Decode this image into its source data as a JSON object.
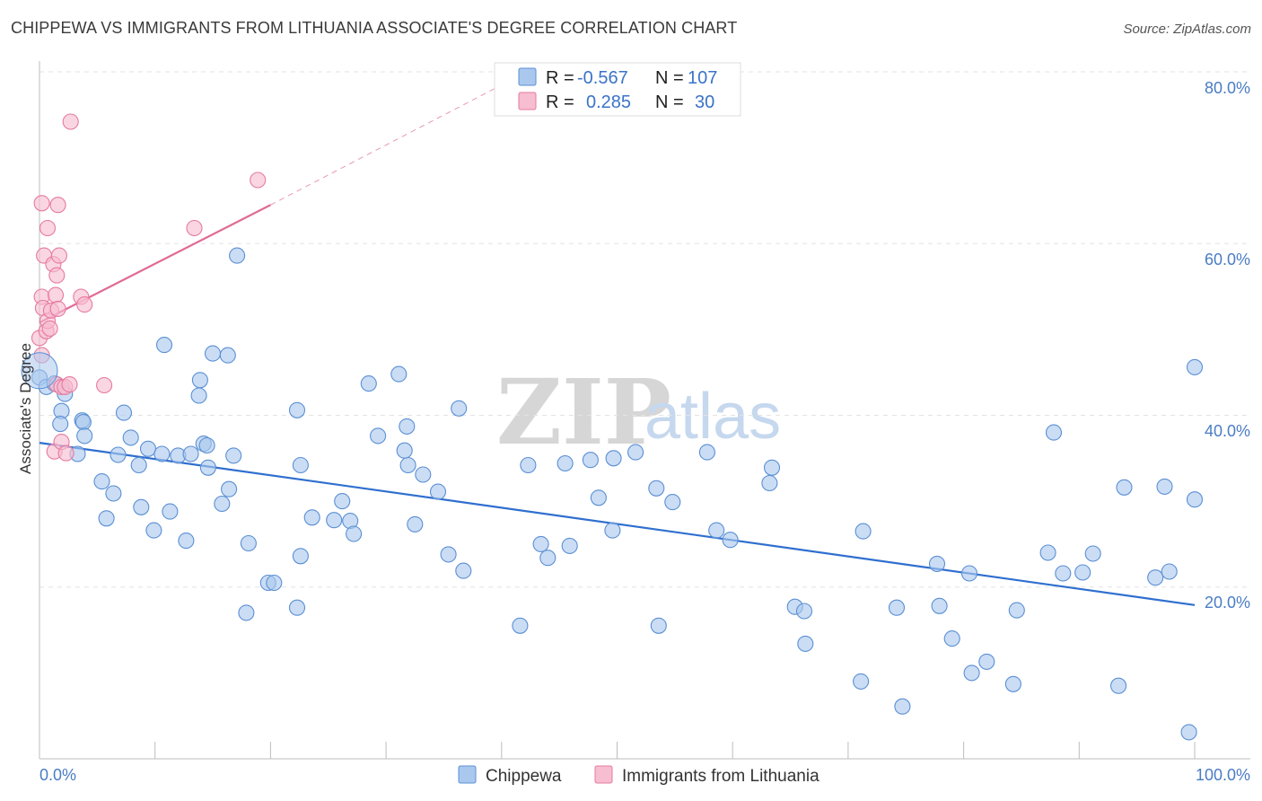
{
  "header": {
    "title": "CHIPPEWA VS IMMIGRANTS FROM LITHUANIA ASSOCIATE'S DEGREE CORRELATION CHART",
    "source": "Source: ZipAtlas.com"
  },
  "watermark": {
    "zip": "ZIP",
    "atlas": "atlas"
  },
  "colors": {
    "blue_fill": "#aac8ee",
    "blue_stroke": "#5b8fd4",
    "blue_line": "#2f6fcf",
    "pink_fill": "#f7bdd0",
    "pink_stroke": "#e67aa0",
    "pink_line": "#e06b96",
    "tick_text": "#4a7cc4",
    "grid": "#e3e3e3"
  },
  "stats": {
    "row1": {
      "r_label": "R =",
      "r_value": "-0.567",
      "n_label": "N =",
      "n_value": "107"
    },
    "row2": {
      "r_label": "R =",
      "r_value": "0.285",
      "n_label": "N =",
      "n_value": "30"
    }
  },
  "chart_data": {
    "type": "scatter",
    "title": "CHIPPEWA VS IMMIGRANTS FROM LITHUANIA ASSOCIATE'S DEGREE CORRELATION CHART",
    "xlabel": "",
    "ylabel": "Associate's Degree",
    "xlim": [
      0,
      100
    ],
    "ylim": [
      0,
      80
    ],
    "x_tick_labels": [
      "0.0%",
      "100.0%"
    ],
    "y_ticks": [
      20,
      40,
      60,
      80
    ],
    "y_tick_labels": [
      "20.0%",
      "40.0%",
      "60.0%",
      "80.0%"
    ],
    "grid": true,
    "legend_position": "bottom-center",
    "series": [
      {
        "name": "Chippewa",
        "color": "blue",
        "r": -0.567,
        "n": 107,
        "trend": {
          "x": [
            0,
            100
          ],
          "y": [
            36.8,
            17.9
          ]
        },
        "points": [
          [
            0.0,
            44.4
          ],
          [
            0.6,
            43.3
          ],
          [
            1.3,
            43.7
          ],
          [
            2.2,
            42.5
          ],
          [
            1.9,
            40.5
          ],
          [
            1.8,
            39.0
          ],
          [
            3.7,
            39.4
          ],
          [
            3.8,
            39.2
          ],
          [
            3.9,
            37.6
          ],
          [
            3.3,
            35.5
          ],
          [
            7.3,
            40.3
          ],
          [
            7.9,
            37.4
          ],
          [
            6.8,
            35.4
          ],
          [
            8.6,
            34.2
          ],
          [
            5.4,
            32.3
          ],
          [
            6.4,
            30.9
          ],
          [
            5.8,
            28.0
          ],
          [
            8.8,
            29.3
          ],
          [
            9.9,
            26.6
          ],
          [
            9.4,
            36.1
          ],
          [
            10.6,
            35.5
          ],
          [
            12.0,
            35.3
          ],
          [
            13.1,
            35.5
          ],
          [
            14.2,
            36.7
          ],
          [
            14.5,
            36.5
          ],
          [
            14.6,
            33.9
          ],
          [
            16.8,
            35.3
          ],
          [
            15.8,
            29.7
          ],
          [
            11.3,
            28.8
          ],
          [
            12.7,
            25.4
          ],
          [
            16.4,
            31.4
          ],
          [
            18.1,
            25.1
          ],
          [
            17.9,
            17.0
          ],
          [
            19.8,
            20.5
          ],
          [
            20.3,
            20.5
          ],
          [
            22.6,
            34.2
          ],
          [
            23.6,
            28.1
          ],
          [
            22.6,
            23.6
          ],
          [
            22.3,
            17.6
          ],
          [
            26.2,
            30.0
          ],
          [
            25.5,
            27.8
          ],
          [
            26.9,
            27.7
          ],
          [
            27.2,
            26.2
          ],
          [
            29.3,
            37.6
          ],
          [
            31.9,
            34.2
          ],
          [
            31.6,
            35.9
          ],
          [
            33.2,
            33.1
          ],
          [
            34.5,
            31.1
          ],
          [
            32.5,
            27.3
          ],
          [
            35.4,
            23.8
          ],
          [
            36.7,
            21.9
          ],
          [
            41.6,
            15.5
          ],
          [
            42.3,
            34.2
          ],
          [
            43.4,
            25.0
          ],
          [
            44.0,
            23.4
          ],
          [
            45.5,
            34.4
          ],
          [
            45.9,
            24.8
          ],
          [
            47.7,
            34.8
          ],
          [
            48.4,
            30.4
          ],
          [
            49.6,
            26.6
          ],
          [
            49.7,
            35.0
          ],
          [
            51.6,
            35.7
          ],
          [
            53.4,
            31.5
          ],
          [
            53.6,
            15.5
          ],
          [
            54.8,
            29.9
          ],
          [
            57.8,
            35.7
          ],
          [
            58.6,
            26.6
          ],
          [
            59.8,
            25.5
          ],
          [
            63.2,
            32.1
          ],
          [
            63.4,
            33.9
          ],
          [
            65.4,
            17.7
          ],
          [
            66.2,
            17.2
          ],
          [
            66.3,
            13.4
          ],
          [
            71.1,
            9.0
          ],
          [
            71.3,
            26.5
          ],
          [
            74.2,
            17.6
          ],
          [
            74.7,
            6.1
          ],
          [
            77.7,
            22.7
          ],
          [
            77.9,
            17.8
          ],
          [
            79.0,
            14.0
          ],
          [
            80.5,
            21.6
          ],
          [
            80.7,
            10.0
          ],
          [
            82.0,
            11.3
          ],
          [
            84.3,
            8.7
          ],
          [
            84.6,
            17.3
          ],
          [
            87.3,
            24.0
          ],
          [
            87.8,
            38.0
          ],
          [
            88.6,
            21.6
          ],
          [
            90.3,
            21.7
          ],
          [
            91.2,
            23.9
          ],
          [
            93.4,
            8.5
          ],
          [
            93.9,
            31.6
          ],
          [
            96.6,
            21.1
          ],
          [
            97.4,
            31.7
          ],
          [
            97.8,
            21.8
          ],
          [
            100.0,
            30.2
          ],
          [
            99.5,
            3.1
          ],
          [
            100.0,
            45.6
          ],
          [
            17.1,
            58.6
          ],
          [
            16.3,
            47.0
          ],
          [
            13.8,
            42.3
          ],
          [
            13.9,
            44.1
          ],
          [
            15.0,
            47.2
          ],
          [
            10.8,
            48.2
          ],
          [
            22.3,
            40.6
          ],
          [
            28.5,
            43.7
          ],
          [
            31.1,
            44.8
          ],
          [
            31.8,
            38.7
          ],
          [
            36.3,
            40.8
          ]
        ]
      },
      {
        "name": "Immigrants from Lithuania",
        "color": "pink",
        "r": 0.285,
        "n": 30,
        "trend": {
          "x": [
            0,
            20
          ],
          "y": [
            50.8,
            64.5
          ]
        },
        "trend_extension": {
          "x": [
            20,
            40.2
          ],
          "y": [
            64.5,
            78.6
          ]
        },
        "points": [
          [
            0.0,
            49.0
          ],
          [
            0.2,
            53.8
          ],
          [
            0.3,
            52.5
          ],
          [
            0.6,
            49.8
          ],
          [
            0.7,
            51.0
          ],
          [
            0.2,
            64.7
          ],
          [
            0.7,
            61.8
          ],
          [
            0.4,
            58.6
          ],
          [
            1.2,
            57.6
          ],
          [
            1.5,
            56.3
          ],
          [
            1.4,
            54.0
          ],
          [
            1.0,
            52.2
          ],
          [
            1.6,
            52.4
          ],
          [
            1.7,
            58.6
          ],
          [
            0.9,
            50.1
          ],
          [
            0.2,
            47.0
          ],
          [
            1.5,
            43.6
          ],
          [
            1.9,
            43.3
          ],
          [
            2.2,
            43.3
          ],
          [
            1.3,
            35.8
          ],
          [
            1.9,
            36.9
          ],
          [
            2.3,
            35.6
          ],
          [
            2.6,
            43.6
          ],
          [
            3.6,
            53.8
          ],
          [
            3.9,
            52.9
          ],
          [
            5.6,
            43.5
          ],
          [
            1.6,
            64.5
          ],
          [
            2.7,
            74.2
          ],
          [
            13.4,
            61.8
          ],
          [
            18.9,
            67.4
          ]
        ]
      }
    ]
  }
}
